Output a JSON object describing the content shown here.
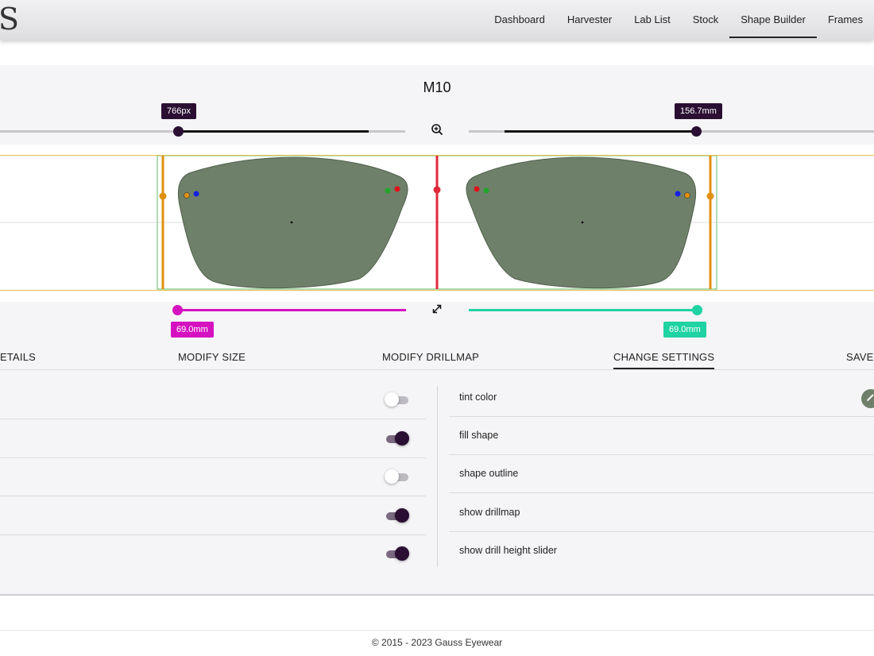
{
  "brand": {
    "logo_text": "S"
  },
  "nav": {
    "items": [
      {
        "label": "Dashboard"
      },
      {
        "label": "Harvester"
      },
      {
        "label": "Lab List"
      },
      {
        "label": "Stock"
      },
      {
        "label": "Shape Builder",
        "active": true
      },
      {
        "label": "Frames"
      }
    ]
  },
  "shape": {
    "title": "M10"
  },
  "scale_sliders": {
    "left": {
      "tooltip": "766px",
      "value_fraction": 0.5
    },
    "right": {
      "tooltip": "156.7mm",
      "value_fraction": 0.5
    },
    "zoom_icon": "zoom-in-icon"
  },
  "size_sliders": {
    "left": {
      "tooltip": "69.0mm",
      "color": "#d512c0"
    },
    "right": {
      "tooltip": "69.0mm",
      "color": "#1fd3a2"
    },
    "expand_icon": "expand-diagonal-icon"
  },
  "tabs": [
    {
      "label": "ETAILS"
    },
    {
      "label": "MODIFY SIZE"
    },
    {
      "label": "MODIFY DRILLMAP"
    },
    {
      "label": "CHANGE SETTINGS",
      "active": true
    },
    {
      "label": "SAVE S"
    }
  ],
  "left_toggles": [
    {
      "on": false
    },
    {
      "on": true
    },
    {
      "on": false
    },
    {
      "on": true
    },
    {
      "on": true
    }
  ],
  "settings": [
    {
      "label": "tint color"
    },
    {
      "label": "fill shape"
    },
    {
      "label": "shape outline"
    },
    {
      "label": "show drillmap"
    },
    {
      "label": "show drill height slider"
    }
  ],
  "tint_button_icon": "pencil-icon",
  "colors": {
    "accent_dark": "#2a0f33",
    "lens_fill": "#6e8069",
    "center_line": "#e0283a",
    "edge_line": "#e0900e",
    "frame_box": "#5fb86a",
    "outer_box": "#e6c04a"
  },
  "footer": {
    "text": "© 2015 - 2023 Gauss Eyewear"
  }
}
